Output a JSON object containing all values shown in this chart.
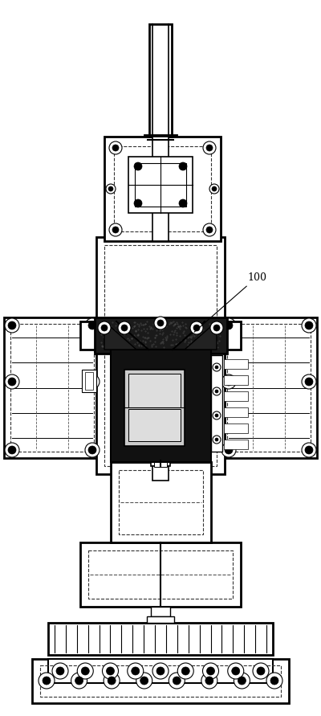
{
  "bg_color": "#ffffff",
  "lc": "#000000",
  "dc": "#555555",
  "label_100": "100",
  "fig_w": 4.0,
  "fig_h": 8.91,
  "dpi": 100
}
